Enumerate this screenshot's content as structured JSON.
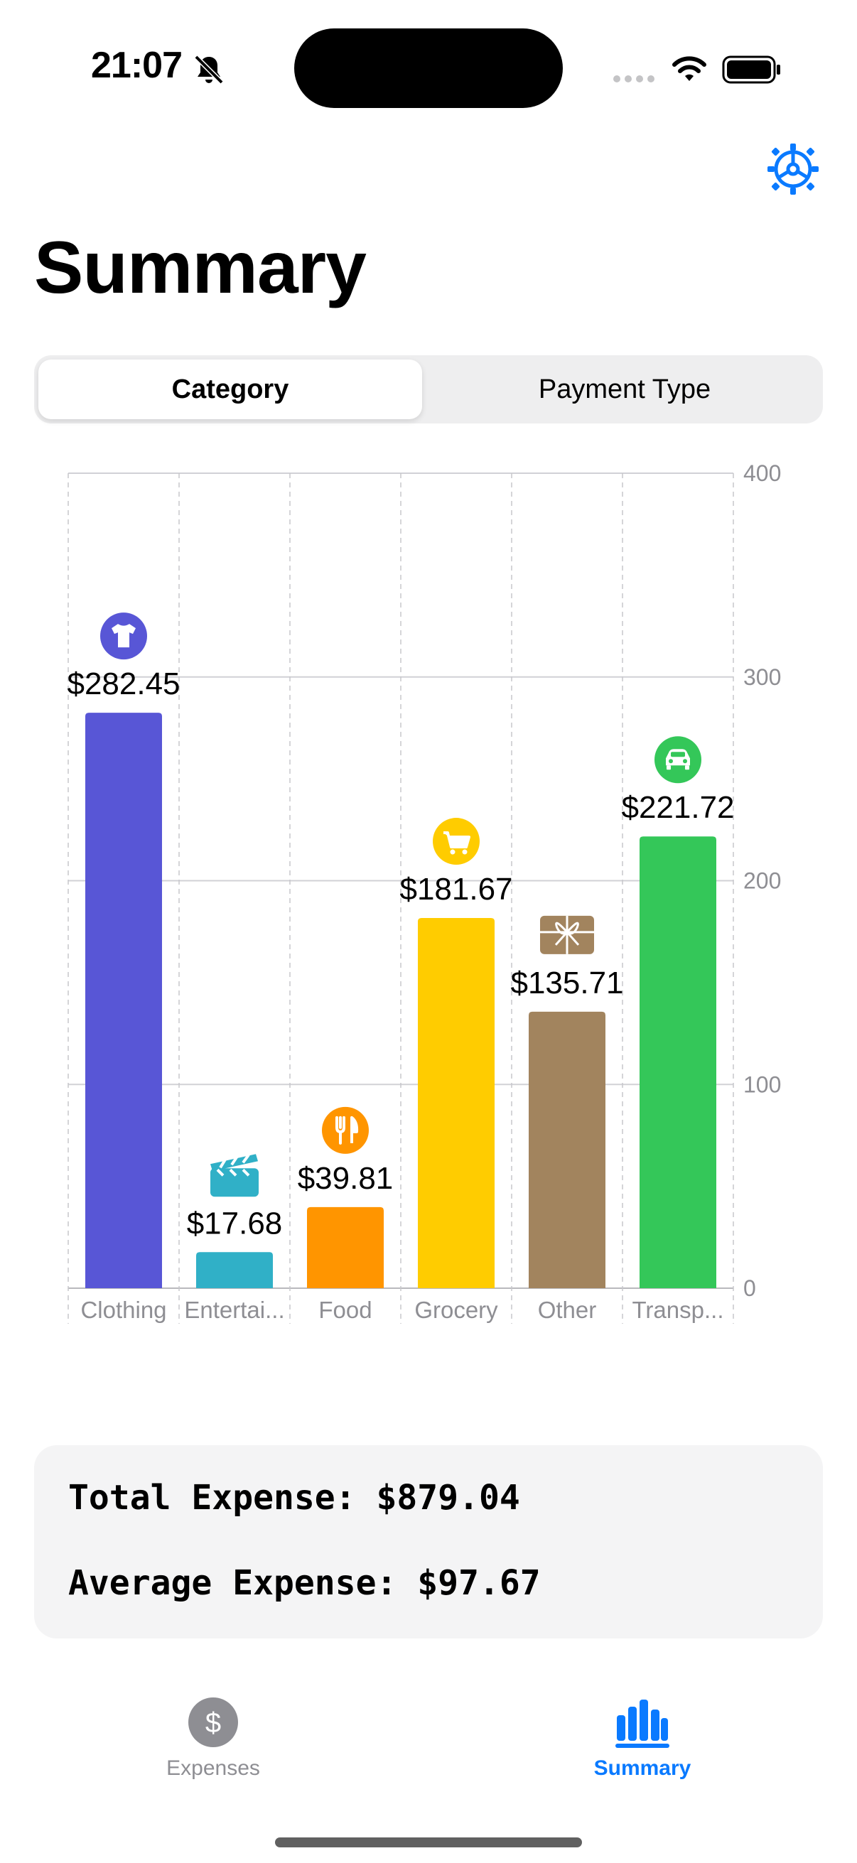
{
  "status_bar": {
    "time": "21:07"
  },
  "header": {
    "title": "Summary",
    "settings_icon": "gear-icon"
  },
  "segmented": {
    "options": [
      "Category",
      "Payment Type"
    ],
    "selected": "Category"
  },
  "chart_data": {
    "type": "bar",
    "categories": [
      "Clothing",
      "Entertai...",
      "Food",
      "Grocery",
      "Other",
      "Transp..."
    ],
    "values": [
      282.45,
      17.68,
      39.81,
      181.67,
      135.71,
      221.72
    ],
    "value_labels": [
      "$282.45",
      "$17.68",
      "$39.81",
      "$181.67",
      "$135.71",
      "$221.72"
    ],
    "colors": [
      "#5856d6",
      "#30b0c7",
      "#ff9500",
      "#ffcc00",
      "#a2845e",
      "#34c759"
    ],
    "icons": [
      "tshirt-icon",
      "clapperboard-icon",
      "fork-knife-icon",
      "cart-icon",
      "gift-icon",
      "car-icon"
    ],
    "y_ticks": [
      "0",
      "100",
      "200",
      "300",
      "400"
    ],
    "ylim": [
      0,
      400
    ],
    "y_axis_position": "right",
    "grid": true
  },
  "summary": {
    "total": "Total Expense: $879.04",
    "average": "Average Expense: $97.67"
  },
  "tabs": {
    "expenses": {
      "label": "Expenses",
      "icon": "dollar-circle-icon",
      "color": "#8e8e93"
    },
    "summary": {
      "label": "Summary",
      "icon": "chart-bar-icon",
      "color": "#0a7aff",
      "active": true
    }
  }
}
